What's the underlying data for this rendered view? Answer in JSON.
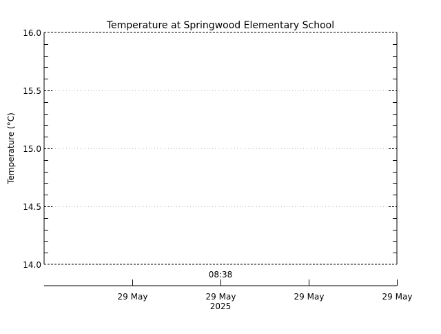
{
  "chart_data": {
    "type": "line",
    "title": "Temperature at Springwood Elementary School",
    "ylabel": "Temperature (°C)",
    "xlabel": "",
    "ylim": [
      14.0,
      16.0
    ],
    "y_ticks": [
      "14.0",
      "14.5",
      "15.0",
      "15.5",
      "16.0"
    ],
    "y_tick_values": [
      14.0,
      14.5,
      15.0,
      15.5,
      16.0
    ],
    "y_minor_step": 0.1,
    "grid": true,
    "x_time_label": "08:38",
    "x_ticks": [
      "29 May",
      "29 May",
      "29 May",
      "29 May"
    ],
    "x_year_label": "2025",
    "series": [],
    "colors": {
      "axis": "#000000",
      "grid": "#bbbbbb"
    }
  }
}
